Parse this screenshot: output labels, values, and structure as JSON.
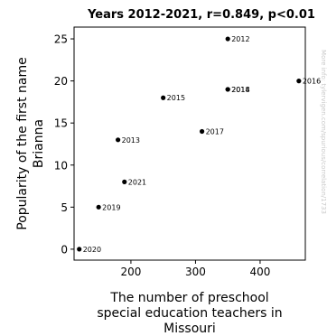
{
  "chart_data": {
    "type": "scatter",
    "title": "Years 2012-2021, r=0.849, p<0.01",
    "xlabel_lines": [
      "The number of preschool",
      "special education teachers in",
      "Missouri"
    ],
    "ylabel_lines": [
      "Popularity of the first name",
      "Brianna"
    ],
    "xlim": [
      112,
      470
    ],
    "ylim": [
      -1.3,
      26.4
    ],
    "xticks": [
      200,
      300,
      400
    ],
    "yticks": [
      0,
      5,
      10,
      15,
      20,
      25
    ],
    "points": [
      {
        "label": "2012",
        "x": 350,
        "y": 25
      },
      {
        "label": "2013",
        "x": 180,
        "y": 13
      },
      {
        "label": "2014",
        "x": 350,
        "y": 19
      },
      {
        "label": "2015",
        "x": 250,
        "y": 18
      },
      {
        "label": "2016",
        "x": 460,
        "y": 20
      },
      {
        "label": "2017",
        "x": 310,
        "y": 14
      },
      {
        "label": "2018",
        "x": 350,
        "y": 19
      },
      {
        "label": "2019",
        "x": 150,
        "y": 5
      },
      {
        "label": "2020",
        "x": 120,
        "y": 0
      },
      {
        "label": "2021",
        "x": 190,
        "y": 8
      }
    ],
    "watermark": "More info: tylervigen.com/spurious/correlation/1733",
    "grid": false,
    "marker_color": "#000000"
  }
}
